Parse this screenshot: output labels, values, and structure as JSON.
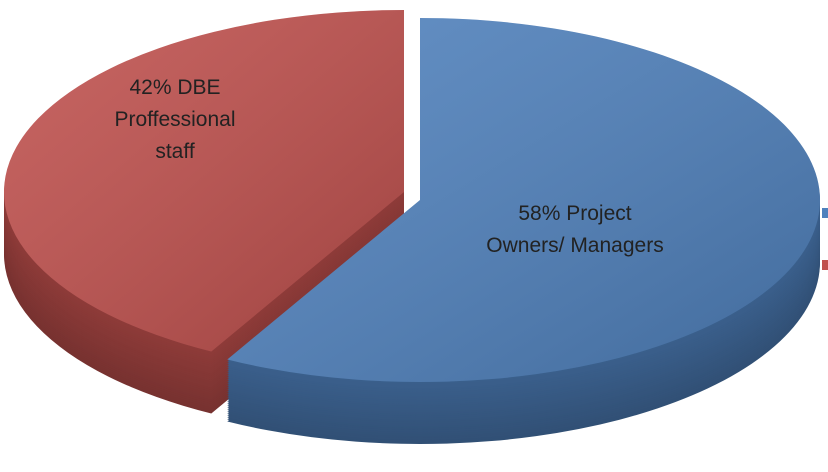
{
  "chart_data": {
    "type": "pie",
    "categories": [
      "Project Owners/ Managers",
      "DBE Proffessional staff"
    ],
    "values": [
      58,
      42
    ],
    "value_labels": [
      "58%",
      "42%"
    ],
    "colors": [
      "#4f81bd",
      "#c0504d"
    ]
  }
}
